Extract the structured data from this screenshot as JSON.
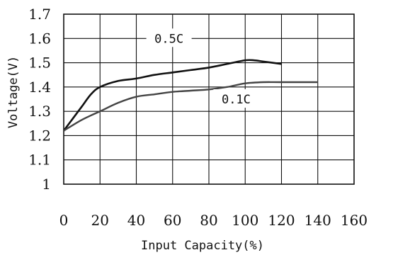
{
  "chart_data": {
    "type": "line",
    "xlabel": "Input Capacity(%)",
    "ylabel": "Voltage(V)",
    "xlim": [
      0,
      160
    ],
    "ylim": [
      1.0,
      1.7
    ],
    "x_ticks": [
      0,
      20,
      40,
      60,
      80,
      100,
      120,
      140,
      160
    ],
    "y_ticks": [
      1.0,
      1.1,
      1.2,
      1.3,
      1.4,
      1.5,
      1.6,
      1.7
    ],
    "x_tick_labels": [
      "0",
      "20",
      "40",
      "60",
      "80",
      "100",
      "120",
      "140",
      "160"
    ],
    "y_tick_labels": [
      "1",
      "1.1",
      "1.2",
      "1.3",
      "1.4",
      "1.5",
      "1.6",
      "1.7"
    ],
    "grid": true,
    "series": [
      {
        "name": "0.5C",
        "color": "#111111",
        "x": [
          0,
          5,
          10,
          15,
          20,
          30,
          40,
          50,
          60,
          70,
          80,
          90,
          100,
          105,
          110,
          120
        ],
        "y": [
          1.22,
          1.27,
          1.32,
          1.37,
          1.4,
          1.425,
          1.435,
          1.45,
          1.46,
          1.47,
          1.48,
          1.495,
          1.51,
          1.51,
          1.505,
          1.495
        ]
      },
      {
        "name": "0.1C",
        "color": "#444444",
        "x": [
          0,
          10,
          20,
          30,
          40,
          50,
          60,
          70,
          80,
          90,
          100,
          110,
          120,
          140
        ],
        "y": [
          1.22,
          1.265,
          1.3,
          1.335,
          1.36,
          1.37,
          1.38,
          1.385,
          1.39,
          1.4,
          1.415,
          1.42,
          1.42,
          1.42
        ]
      }
    ]
  }
}
